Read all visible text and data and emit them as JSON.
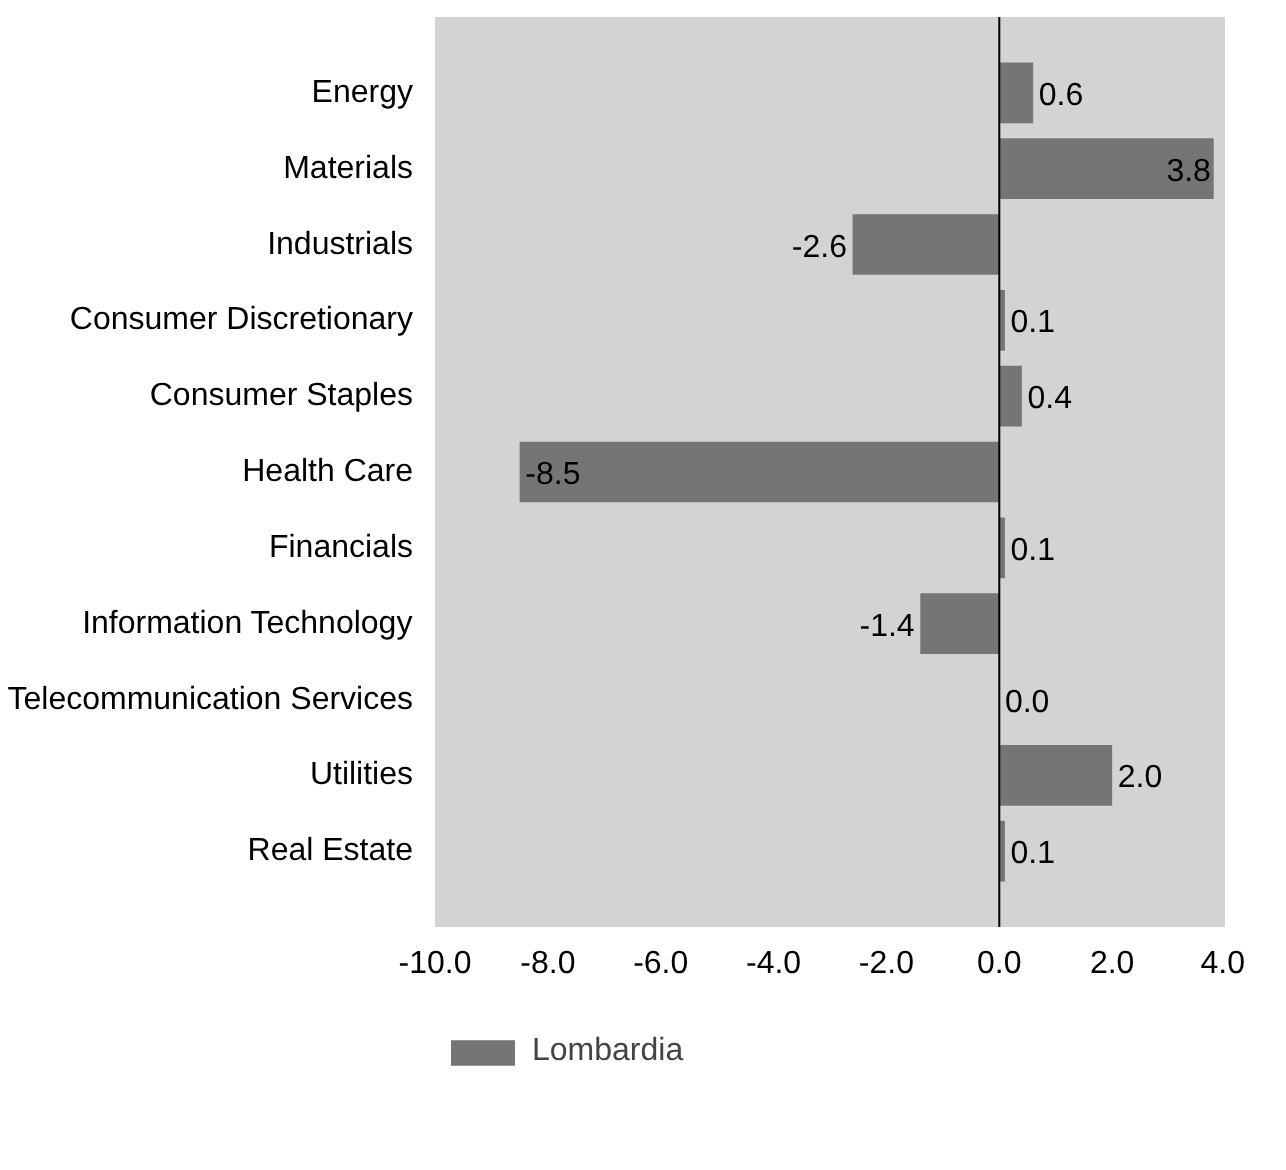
{
  "chart_data": {
    "type": "bar",
    "orientation": "horizontal",
    "categories": [
      "Energy",
      "Materials",
      "Industrials",
      "Consumer Discretionary",
      "Consumer Staples",
      "Health Care",
      "Financials",
      "Information Technology",
      "Telecommunication Services",
      "Utilities",
      "Real Estate"
    ],
    "series": [
      {
        "name": "Lombardia",
        "color": "#757575",
        "values": [
          0.6,
          3.8,
          -2.6,
          0.1,
          0.4,
          -8.5,
          0.1,
          -1.4,
          0.0,
          2.0,
          0.1
        ],
        "value_labels": [
          "0.6",
          "3.8",
          "-2.6",
          "0.1",
          "0.4",
          "-8.5",
          "0.1",
          "-1.4",
          "0.0",
          "2.0",
          "0.1"
        ]
      }
    ],
    "xlim": [
      -10,
      4
    ],
    "xticks": [
      {
        "value": -10,
        "label": "-10.0"
      },
      {
        "value": -8,
        "label": "-8.0"
      },
      {
        "value": -6,
        "label": "-6.0"
      },
      {
        "value": -4,
        "label": "-4.0"
      },
      {
        "value": -2,
        "label": "-2.0"
      },
      {
        "value": 0,
        "label": "0.0"
      },
      {
        "value": 2,
        "label": "2.0"
      },
      {
        "value": 4,
        "label": "4.0"
      }
    ],
    "ref_lines": [
      {
        "axis": "x",
        "value": 0,
        "color": "#000000"
      }
    ],
    "grid": false,
    "legend": "bottom left"
  }
}
